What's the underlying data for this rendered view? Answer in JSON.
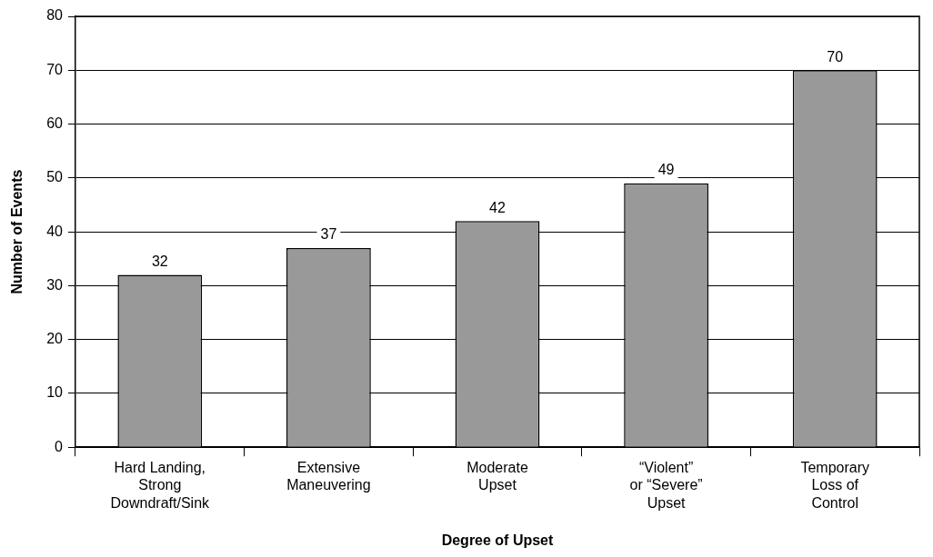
{
  "chart_data": {
    "type": "bar",
    "xlabel": "Degree of Upset",
    "ylabel": "Number of Events",
    "categories": [
      "Hard Landing,\nStrong\nDowndraft/Sink",
      "Extensive\nManeuvering",
      "Moderate\nUpset",
      "“Violent”\nor “Severe”\nUpset",
      "Temporary\nLoss of\nControl"
    ],
    "values": [
      32,
      37,
      42,
      49,
      70
    ],
    "color": "#999999",
    "ylim": [
      0,
      80
    ],
    "yticks": [
      0,
      10,
      20,
      30,
      40,
      50,
      60,
      70,
      80
    ],
    "grid": "y",
    "data_labels": true,
    "legend": false
  }
}
